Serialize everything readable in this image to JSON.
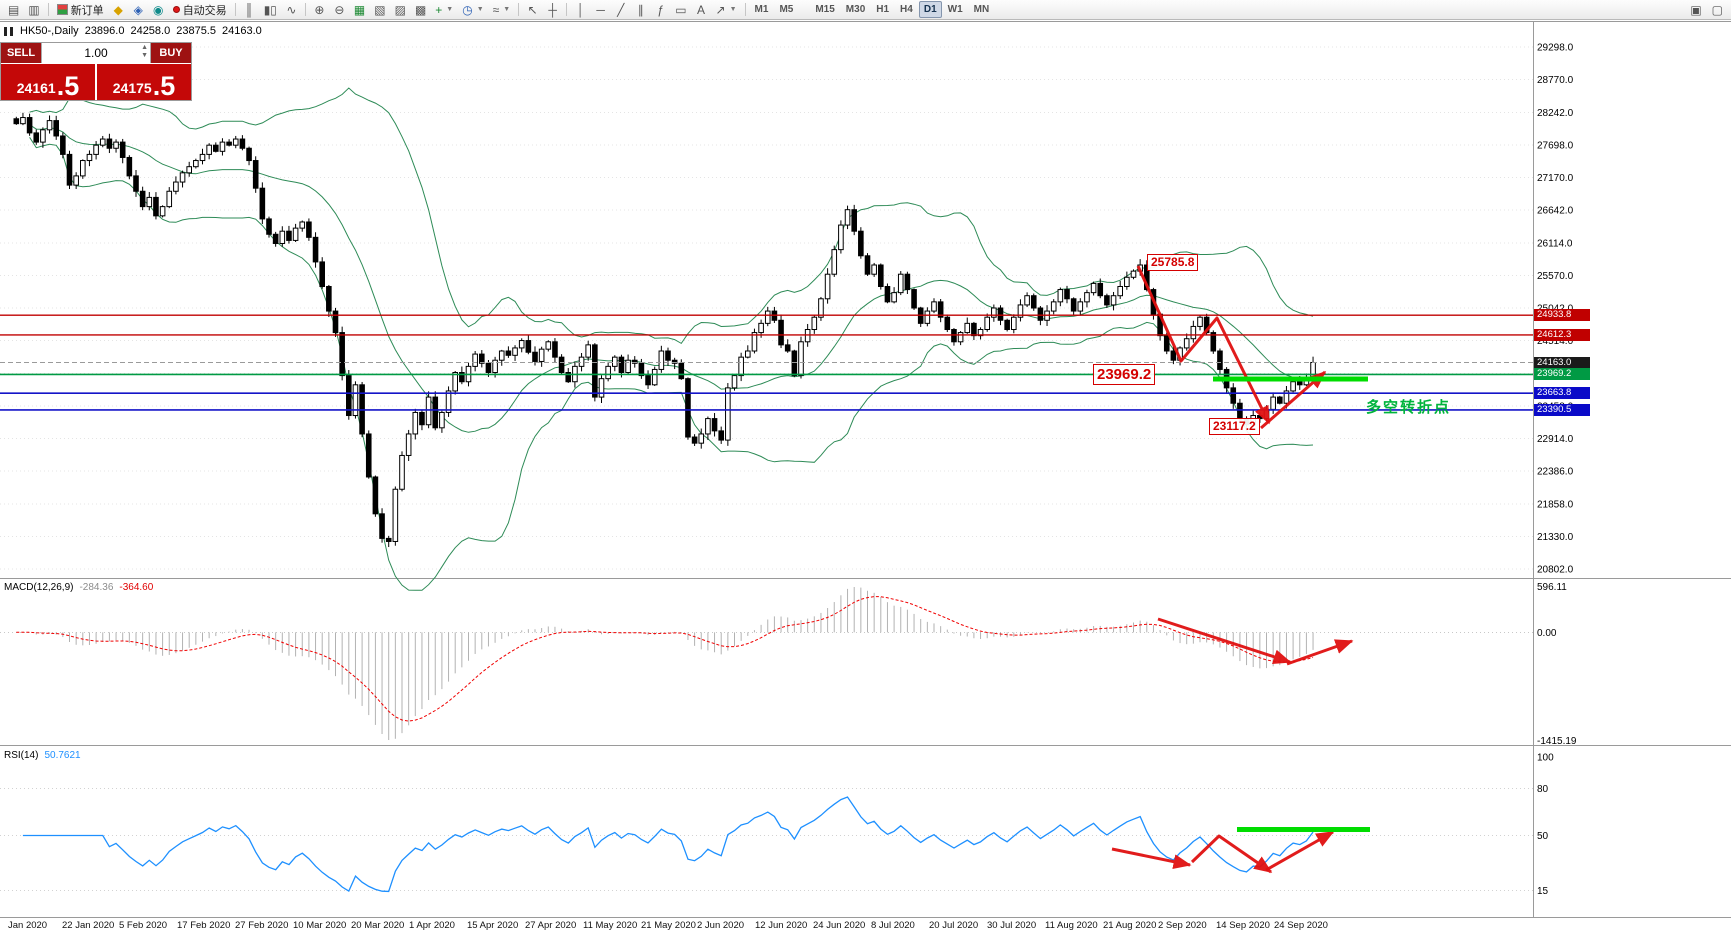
{
  "toolbar": {
    "new_order": "新订单",
    "auto_trading": "自动交易",
    "timeframes": [
      "M1",
      "M5",
      "M15",
      "M30",
      "H1",
      "H4",
      "D1",
      "W1",
      "MN"
    ],
    "active_timeframe": "D1"
  },
  "header": {
    "symbol": "HK50-,Daily",
    "open": "23896.0",
    "high": "24258.0",
    "low": "23875.5",
    "close": "24163.0"
  },
  "trade_panel": {
    "sell_label": "SELL",
    "buy_label": "BUY",
    "volume": "1.00",
    "sell_price_int": "24161",
    "sell_price_frac": ".5",
    "buy_price_int": "24175",
    "buy_price_frac": ".5"
  },
  "annotations": {
    "swing_high": "25785.8",
    "pivot_price": "23969.2",
    "swing_low": "23117.2",
    "pivot_note": "多空转折点"
  },
  "macd_panel": {
    "title": "MACD(12,26,9)",
    "main_value": "-284.36",
    "signal_value": "-364.60"
  },
  "rsi_panel": {
    "title": "RSI(14)",
    "value": "50.7621"
  },
  "price_tags": [
    {
      "label": "24933.8",
      "price": 24933.8,
      "bg": "#c00000"
    },
    {
      "label": "24612.3",
      "price": 24612.3,
      "bg": "#c00000"
    },
    {
      "label": "24163.0",
      "price": 24163.0,
      "bg": "#1a1a1a"
    },
    {
      "label": "23969.2",
      "price": 23969.2,
      "bg": "#009a44"
    },
    {
      "label": "23663.8",
      "price": 23663.8,
      "bg": "#0a0ac8"
    },
    {
      "label": "23390.5",
      "price": 23390.5,
      "bg": "#0a0ac8"
    }
  ],
  "chart_data": {
    "type": "candlestick",
    "symbol": "HK50",
    "timeframe": "Daily",
    "current_ohlc": {
      "open": 23896.0,
      "high": 24258.0,
      "low": 23875.5,
      "close": 24163.0
    },
    "y_range": [
      20802.0,
      29298.0
    ],
    "y_ticks": [
      "29298.0",
      "28770.0",
      "28242.0",
      "27698.0",
      "27170.0",
      "26642.0",
      "26114.0",
      "25570.0",
      "25042.0",
      "24514.0",
      "23986.0",
      "23458.0",
      "22914.0",
      "22386.0",
      "21858.0",
      "21330.0",
      "20802.0"
    ],
    "x_ticks": [
      "Jan 2020",
      "22 Jan 2020",
      "5 Feb 2020",
      "17 Feb 2020",
      "27 Feb 2020",
      "10 Mar 2020",
      "20 Mar 2020",
      "1 Apr 2020",
      "15 Apr 2020",
      "27 Apr 2020",
      "11 May 2020",
      "21 May 2020",
      "2 Jun 2020",
      "12 Jun 2020",
      "24 Jun 2020",
      "8 Jul 2020",
      "20 Jul 2020",
      "30 Jul 2020",
      "11 Aug 2020",
      "21 Aug 2020",
      "2 Sep 2020",
      "14 Sep 2020",
      "24 Sep 2020"
    ],
    "closes": [
      28050,
      28150,
      27900,
      27750,
      27950,
      28100,
      27850,
      27550,
      27050,
      27200,
      27450,
      27550,
      27700,
      27800,
      27650,
      27750,
      27500,
      27200,
      26950,
      26700,
      26850,
      26550,
      26700,
      26950,
      27100,
      27250,
      27350,
      27450,
      27550,
      27700,
      27600,
      27750,
      27700,
      27800,
      27650,
      27450,
      27000,
      26500,
      26250,
      26100,
      26300,
      26150,
      26350,
      26450,
      26200,
      25800,
      25400,
      25000,
      24650,
      23950,
      23300,
      23800,
      23000,
      22300,
      21700,
      21300,
      21250,
      22100,
      22650,
      23000,
      23350,
      23150,
      23600,
      23100,
      23350,
      23700,
      24000,
      23850,
      24100,
      24300,
      24150,
      24000,
      24200,
      24350,
      24280,
      24400,
      24520,
      24330,
      24180,
      24380,
      24500,
      24250,
      24000,
      23850,
      24100,
      24250,
      24450,
      23600,
      23900,
      24100,
      24250,
      24000,
      24200,
      24150,
      23950,
      23800,
      24050,
      24350,
      24200,
      24150,
      23900,
      22950,
      22850,
      23000,
      23250,
      23050,
      22900,
      23750,
      23950,
      24250,
      24350,
      24650,
      24800,
      25000,
      24850,
      24450,
      24350,
      23950,
      24500,
      24700,
      24900,
      25200,
      25600,
      26000,
      26400,
      26650,
      26300,
      25900,
      25600,
      25750,
      25400,
      25150,
      25300,
      25600,
      25350,
      25050,
      24800,
      25000,
      25150,
      24900,
      24700,
      24500,
      24650,
      24800,
      24600,
      24700,
      24900,
      25050,
      24850,
      24700,
      24900,
      25100,
      25250,
      25050,
      24850,
      25000,
      25150,
      25350,
      25200,
      25000,
      25150,
      25300,
      25450,
      25250,
      25100,
      25250,
      25400,
      25550,
      25650,
      25750,
      25350,
      24950,
      24600,
      24350,
      24200,
      24400,
      24550,
      24750,
      24900,
      24650,
      24350,
      24050,
      23750,
      23500,
      23250,
      23150,
      23300,
      23250,
      23400,
      23600,
      23500,
      23700,
      23850,
      23800,
      23900,
      24163
    ],
    "horizontal_lines": [
      {
        "price": 24933.8,
        "color": "#c00000",
        "width": 1.4,
        "style": "solid"
      },
      {
        "price": 24612.3,
        "color": "#c00000",
        "width": 1.4,
        "style": "solid"
      },
      {
        "price": 24163.0,
        "color": "#9a9a9a",
        "width": 1,
        "style": "dash"
      },
      {
        "price": 23969.2,
        "color": "#009a44",
        "width": 1.6,
        "style": "solid"
      },
      {
        "price": 23663.8,
        "color": "#1414c8",
        "width": 1.6,
        "style": "solid"
      },
      {
        "price": 23390.5,
        "color": "#1414c8",
        "width": 1.6,
        "style": "solid"
      }
    ],
    "marked_points": {
      "swing_high": 25785.8,
      "swing_low": 23117.2,
      "pivot_level": 23969.2
    },
    "indicators": {
      "bollinger_bands": {
        "period": 20,
        "deviations": 2,
        "color": "#2e8b57"
      },
      "macd": {
        "fast": 12,
        "slow": 26,
        "signal": 9,
        "current_main": -284.36,
        "current_signal": -364.6,
        "axis_range": [
          -1415.19,
          596.11
        ],
        "axis_labels": [
          "596.11",
          "0.00",
          "-1415.19"
        ]
      },
      "rsi": {
        "period": 14,
        "current": 50.7621,
        "axis_marks": [
          100,
          80,
          50,
          15
        ]
      }
    }
  }
}
